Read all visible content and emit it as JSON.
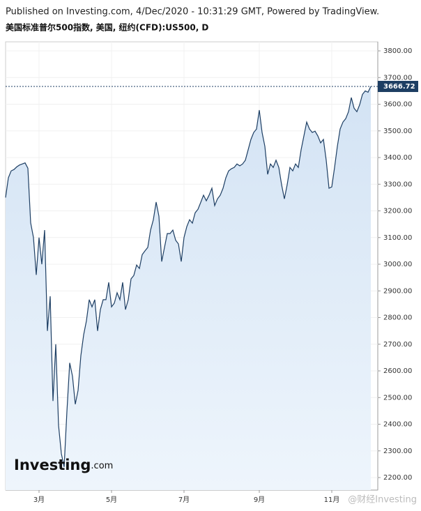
{
  "header": {
    "published": "Published on Investing.com, 4/Dec/2020 - 10:31:29 GMT, Powered by TradingView.",
    "subtitle": "美国标准普尔500指数, 美国, 纽约(CFD):US500, D"
  },
  "logo": {
    "brand": "Investing",
    "suffix": ".com"
  },
  "watermark": "@财经Investing",
  "chart_data": {
    "type": "area",
    "categories": [
      null,
      null,
      null,
      null,
      null,
      null,
      null,
      null,
      null,
      null,
      null,
      null,
      "3月",
      null,
      null,
      null,
      null,
      null,
      null,
      null,
      null,
      null,
      null,
      null,
      null,
      null,
      null,
      null,
      null,
      null,
      null,
      null,
      null,
      null,
      null,
      null,
      null,
      null,
      "5月",
      null,
      null,
      null,
      null,
      null,
      null,
      null,
      null,
      null,
      null,
      null,
      null,
      null,
      null,
      null,
      null,
      null,
      null,
      null,
      null,
      null,
      null,
      null,
      null,
      null,
      "7月",
      null,
      null,
      null,
      null,
      null,
      null,
      null,
      null,
      null,
      null,
      null,
      null,
      null,
      null,
      null,
      null,
      null,
      null,
      null,
      null,
      null,
      null,
      null,
      null,
      null,
      null,
      "9月",
      null,
      null,
      null,
      null,
      null,
      null,
      null,
      null,
      null,
      null,
      null,
      null,
      null,
      null,
      null,
      null,
      null,
      null,
      null,
      null,
      null,
      null,
      null,
      null,
      null,
      "11月",
      null,
      null,
      null,
      null,
      null,
      null,
      null,
      null,
      null,
      null,
      null,
      null,
      null,
      null
    ],
    "series": [
      {
        "color": "#1d3e63",
        "values": [
          3250,
          3324,
          3350,
          3355,
          3365,
          3372,
          3376,
          3380,
          3360,
          3155,
          3100,
          2960,
          3100,
          3000,
          3128,
          2750,
          2880,
          2487,
          2700,
          2396,
          2290,
          2240,
          2448,
          2630,
          2580,
          2475,
          2527,
          2657,
          2735,
          2788,
          2867,
          2840,
          2867,
          2750,
          2830,
          2867,
          2867,
          2932,
          2840,
          2854,
          2893,
          2867,
          2932,
          2830,
          2867,
          2945,
          2958,
          2997,
          2984,
          3036,
          3050,
          3063,
          3128,
          3167,
          3233,
          3180,
          3010,
          3063,
          3115,
          3115,
          3128,
          3090,
          3076,
          3010,
          3100,
          3141,
          3167,
          3154,
          3193,
          3206,
          3232,
          3259,
          3238,
          3259,
          3285,
          3220,
          3245,
          3259,
          3285,
          3324,
          3350,
          3358,
          3363,
          3376,
          3369,
          3376,
          3390,
          3429,
          3468,
          3494,
          3507,
          3578,
          3494,
          3442,
          3337,
          3376,
          3363,
          3390,
          3363,
          3298,
          3245,
          3298,
          3363,
          3350,
          3376,
          3363,
          3429,
          3481,
          3533,
          3507,
          3494,
          3499,
          3481,
          3455,
          3468,
          3390,
          3285,
          3290,
          3363,
          3442,
          3507,
          3533,
          3546,
          3572,
          3625,
          3585,
          3572,
          3598,
          3637,
          3650,
          3645,
          3666.72
        ]
      }
    ],
    "ylim": [
      2153,
      3834
    ],
    "yticks": [
      {
        "value": 2200,
        "label": "2200.00"
      },
      {
        "value": 2300,
        "label": "2300.00"
      },
      {
        "value": 2400,
        "label": "2400.00"
      },
      {
        "value": 2500,
        "label": "2500.00"
      },
      {
        "value": 2600,
        "label": "2600.00"
      },
      {
        "value": 2700,
        "label": "2700.00"
      },
      {
        "value": 2800,
        "label": "2800.00"
      },
      {
        "value": 2900,
        "label": "2900.00"
      },
      {
        "value": 3000,
        "label": "3000.00"
      },
      {
        "value": 3100,
        "label": "3100.00"
      },
      {
        "value": 3200,
        "label": "3200.00"
      },
      {
        "value": 3300,
        "label": "3300.00"
      },
      {
        "value": 3400,
        "label": "3400.00"
      },
      {
        "value": 3500,
        "label": "3500.00"
      },
      {
        "value": 3600,
        "label": "3600.00"
      },
      {
        "value": 3700,
        "label": "3700.00"
      },
      {
        "value": 3800,
        "label": "3800.00"
      }
    ],
    "grid": true
  }
}
